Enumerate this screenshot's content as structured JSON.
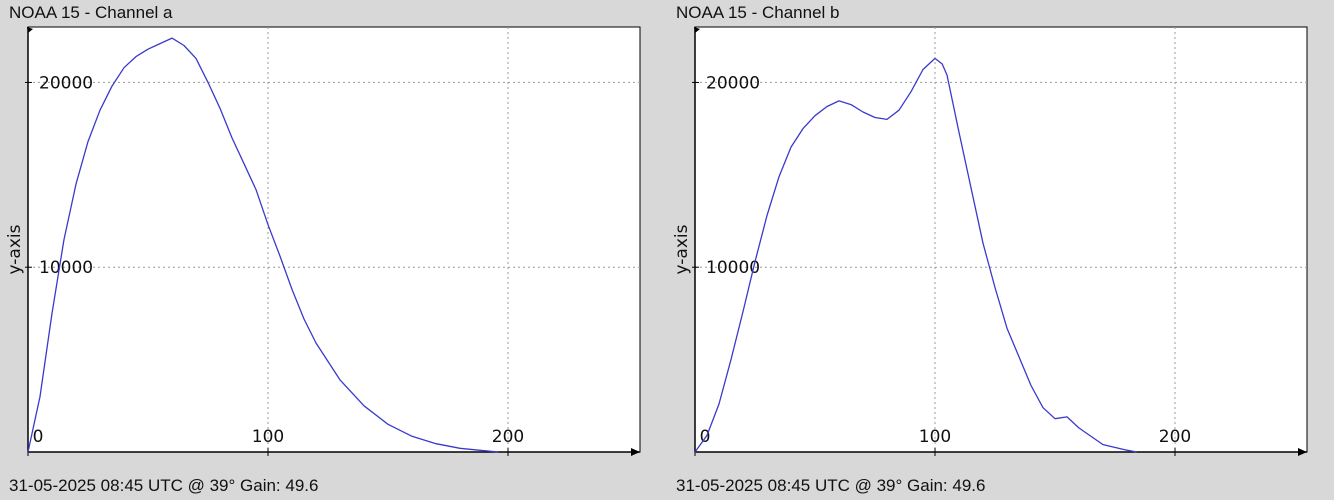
{
  "panels": [
    {
      "title": "NOAA 15 - Channel a",
      "footer": "31-05-2025 08:45 UTC @ 39° Gain: 49.6"
    },
    {
      "title": "NOAA 15 - Channel b",
      "footer": "31-05-2025 08:45 UTC @ 39° Gain: 49.6"
    }
  ],
  "colors": {
    "line": "#3a3acc",
    "grid": "#9a9a9a",
    "axis": "#000000",
    "plot_bg": "#ffffff",
    "page_bg": "#d8d8d8"
  },
  "chart_data": [
    {
      "type": "line",
      "title": "NOAA 15 - Channel a",
      "xlabel": "",
      "ylabel": "y-axis",
      "xlim": [
        0,
        255
      ],
      "ylim": [
        0,
        23000
      ],
      "xticks": [
        0,
        100,
        200
      ],
      "yticks": [
        10000,
        20000
      ],
      "grid": true,
      "legend": "none",
      "series": [
        {
          "x": [
            0,
            5,
            10,
            15,
            20,
            25,
            30,
            35,
            40,
            45,
            50,
            55,
            60,
            65,
            70,
            75,
            80,
            85,
            90,
            95,
            100,
            105,
            110,
            115,
            120,
            130,
            140,
            150,
            160,
            170,
            180,
            190,
            196
          ],
          "values": [
            0,
            3000,
            7500,
            11500,
            14500,
            16800,
            18500,
            19800,
            20800,
            21400,
            21800,
            22100,
            22400,
            22000,
            21300,
            20000,
            18600,
            17000,
            15600,
            14200,
            12300,
            10600,
            8800,
            7200,
            5900,
            3900,
            2500,
            1500,
            850,
            450,
            200,
            70,
            0
          ]
        }
      ]
    },
    {
      "type": "line",
      "title": "NOAA 15 - Channel b",
      "xlabel": "",
      "ylabel": "y-axis",
      "xlim": [
        0,
        255
      ],
      "ylim": [
        0,
        23000
      ],
      "xticks": [
        0,
        100,
        200
      ],
      "yticks": [
        10000,
        20000
      ],
      "grid": true,
      "legend": "none",
      "series": [
        {
          "x": [
            0,
            5,
            10,
            15,
            20,
            25,
            30,
            35,
            40,
            45,
            50,
            55,
            60,
            65,
            70,
            75,
            80,
            85,
            90,
            95,
            100,
            103,
            105,
            110,
            115,
            120,
            125,
            130,
            140,
            145,
            150,
            155,
            160,
            170,
            180,
            184
          ],
          "values": [
            0,
            900,
            2600,
            5000,
            7600,
            10300,
            12800,
            14900,
            16500,
            17500,
            18200,
            18700,
            19000,
            18800,
            18400,
            18100,
            18000,
            18500,
            19500,
            20700,
            21300,
            21000,
            20400,
            17300,
            14300,
            11300,
            8900,
            6700,
            3600,
            2400,
            1800,
            1900,
            1300,
            400,
            100,
            0
          ]
        }
      ]
    }
  ]
}
